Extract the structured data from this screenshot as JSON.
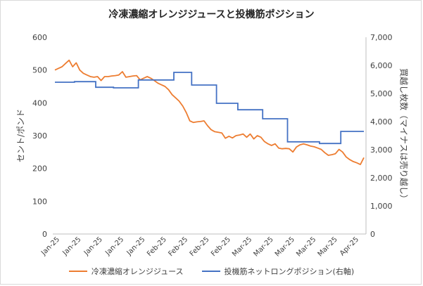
{
  "chart_data": {
    "type": "line",
    "title": "冷凍濃縮オレンジジュースと投機筋ポジション",
    "ylabel": "セント/ポンド",
    "y2label": "買越し枚数（マイナスは売り越し）",
    "ylim": [
      0,
      600
    ],
    "y2lim": [
      0,
      7000
    ],
    "yticks": [
      "0",
      "100",
      "200",
      "300",
      "400",
      "500",
      "600"
    ],
    "y2ticks": [
      "0",
      "1,000",
      "2,000",
      "3,000",
      "4,000",
      "5,000",
      "6,000",
      "7,000"
    ],
    "xtick_labels": [
      "Jan-25",
      "Jan-25",
      "Jan-25",
      "Jan-25",
      "Jan-25",
      "Feb-25",
      "Feb-25",
      "Feb-25",
      "Feb-25",
      "Mar-25",
      "Mar-25",
      "Mar-25",
      "Mar-25",
      "Mar-25",
      "Apr-25"
    ],
    "grid": false,
    "legend_position": "bottom",
    "series": [
      {
        "name": "冷凍濃縮オレンジジュース",
        "axis": "left",
        "color": "#ED7D31",
        "values": [
          500,
          505,
          510,
          520,
          530,
          510,
          522,
          500,
          490,
          485,
          480,
          478,
          480,
          468,
          480,
          480,
          482,
          483,
          485,
          495,
          478,
          480,
          482,
          483,
          470,
          475,
          480,
          475,
          468,
          460,
          455,
          450,
          440,
          425,
          415,
          405,
          390,
          370,
          345,
          340,
          342,
          343,
          345,
          330,
          318,
          312,
          310,
          308,
          292,
          298,
          293,
          300,
          302,
          305,
          295,
          305,
          290,
          300,
          295,
          282,
          275,
          270,
          275,
          262,
          260,
          261,
          260,
          250,
          265,
          272,
          275,
          272,
          268,
          266,
          262,
          258,
          248,
          240,
          242,
          245,
          258,
          250,
          235,
          227,
          221,
          217,
          212,
          233
        ]
      },
      {
        "name": "投機筋ネットロングポジション(右軸)",
        "axis": "right",
        "color": "#4472C4",
        "steps": [
          [
            0,
            5400
          ],
          [
            5.5,
            5420
          ],
          [
            11.5,
            5220
          ],
          [
            16.5,
            5200
          ],
          [
            23.5,
            5480
          ],
          [
            33.5,
            5750
          ],
          [
            38.5,
            5300
          ],
          [
            45.5,
            4650
          ],
          [
            51.5,
            4420
          ],
          [
            58.5,
            4100
          ],
          [
            65.5,
            3280
          ],
          [
            74.5,
            3220
          ],
          [
            80.5,
            3650
          ],
          [
            87,
            3650
          ]
        ]
      }
    ]
  }
}
